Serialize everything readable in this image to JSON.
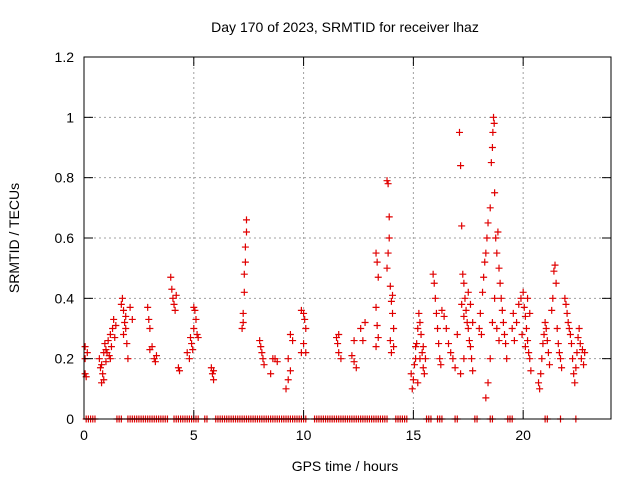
{
  "chart_data": {
    "type": "scatter",
    "title": "Day 170 of 2023, SRMTID for receiver lhaz",
    "xlabel": "GPS time / hours",
    "ylabel": "SRMTID / TECUs",
    "xlim": [
      0,
      24
    ],
    "ylim": [
      0,
      1.2
    ],
    "x_ticks": [
      0,
      5,
      10,
      15,
      20
    ],
    "x_tick_labels": [
      "0",
      "5",
      "10",
      "15",
      "20"
    ],
    "y_ticks": [
      0,
      0.2,
      0.4,
      0.6,
      0.8,
      1.0,
      1.2
    ],
    "y_tick_labels": [
      "0",
      "0.2",
      "0.4",
      "0.6",
      "0.8",
      "1",
      "1.2"
    ],
    "grid": true,
    "marker": "plus",
    "series": [
      {
        "name": "SRMTID",
        "color": "#e00000",
        "points": [
          [
            0.05,
            0.24
          ],
          [
            0.05,
            0.2
          ],
          [
            0.05,
            0.15
          ],
          [
            0.1,
            0.14
          ],
          [
            0.15,
            0.22
          ],
          [
            0.7,
            0.2
          ],
          [
            0.75,
            0.17
          ],
          [
            0.8,
            0.12
          ],
          [
            0.85,
            0.15
          ],
          [
            0.9,
            0.22
          ],
          [
            0.95,
            0.25
          ],
          [
            1.0,
            0.19
          ],
          [
            1.05,
            0.22
          ],
          [
            1.1,
            0.26
          ],
          [
            1.15,
            0.21
          ],
          [
            1.2,
            0.28
          ],
          [
            1.25,
            0.24
          ],
          [
            1.3,
            0.3
          ],
          [
            1.35,
            0.33
          ],
          [
            1.4,
            0.27
          ],
          [
            1.45,
            0.31
          ],
          [
            0.8,
            0.18
          ],
          [
            0.9,
            0.13
          ],
          [
            1.0,
            0.23
          ],
          [
            1.2,
            0.2
          ],
          [
            1.7,
            0.38
          ],
          [
            1.75,
            0.4
          ],
          [
            1.8,
            0.36
          ],
          [
            1.85,
            0.32
          ],
          [
            1.9,
            0.3
          ],
          [
            1.95,
            0.25
          ],
          [
            2.0,
            0.2
          ],
          [
            1.9,
            0.34
          ],
          [
            1.8,
            0.28
          ],
          [
            2.1,
            0.37
          ],
          [
            2.2,
            0.33
          ],
          [
            2.9,
            0.37
          ],
          [
            2.95,
            0.33
          ],
          [
            3.0,
            0.3
          ],
          [
            3.1,
            0.24
          ],
          [
            3.2,
            0.2
          ],
          [
            3.25,
            0.19
          ],
          [
            3.3,
            0.21
          ],
          [
            3.0,
            0.23
          ],
          [
            3.95,
            0.47
          ],
          [
            4.0,
            0.43
          ],
          [
            4.05,
            0.4
          ],
          [
            4.1,
            0.38
          ],
          [
            4.15,
            0.36
          ],
          [
            4.2,
            0.41
          ],
          [
            4.3,
            0.17
          ],
          [
            4.35,
            0.16
          ],
          [
            4.7,
            0.22
          ],
          [
            4.8,
            0.2
          ],
          [
            4.9,
            0.25
          ],
          [
            5.0,
            0.3
          ],
          [
            5.05,
            0.36
          ],
          [
            5.1,
            0.33
          ],
          [
            5.15,
            0.28
          ],
          [
            5.2,
            0.27
          ],
          [
            4.85,
            0.27
          ],
          [
            4.95,
            0.23
          ],
          [
            5.0,
            0.37
          ],
          [
            5.8,
            0.17
          ],
          [
            5.85,
            0.15
          ],
          [
            5.9,
            0.13
          ],
          [
            5.9,
            0.16
          ],
          [
            7.2,
            0.3
          ],
          [
            7.25,
            0.35
          ],
          [
            7.3,
            0.42
          ],
          [
            7.3,
            0.48
          ],
          [
            7.35,
            0.52
          ],
          [
            7.35,
            0.57
          ],
          [
            7.4,
            0.62
          ],
          [
            7.4,
            0.66
          ],
          [
            7.25,
            0.32
          ],
          [
            8.0,
            0.26
          ],
          [
            8.05,
            0.24
          ],
          [
            8.1,
            0.22
          ],
          [
            8.15,
            0.2
          ],
          [
            8.2,
            0.18
          ],
          [
            8.5,
            0.15
          ],
          [
            8.6,
            0.2
          ],
          [
            8.7,
            0.2
          ],
          [
            8.8,
            0.19
          ],
          [
            9.2,
            0.1
          ],
          [
            9.3,
            0.13
          ],
          [
            9.4,
            0.28
          ],
          [
            9.5,
            0.26
          ],
          [
            9.3,
            0.2
          ],
          [
            9.4,
            0.16
          ],
          [
            9.9,
            0.36
          ],
          [
            10.0,
            0.35
          ],
          [
            10.05,
            0.33
          ],
          [
            10.1,
            0.3
          ],
          [
            10.0,
            0.25
          ],
          [
            10.1,
            0.22
          ],
          [
            9.9,
            0.22
          ],
          [
            11.5,
            0.27
          ],
          [
            11.55,
            0.25
          ],
          [
            11.6,
            0.22
          ],
          [
            11.7,
            0.2
          ],
          [
            11.6,
            0.28
          ],
          [
            12.2,
            0.21
          ],
          [
            12.3,
            0.19
          ],
          [
            12.4,
            0.17
          ],
          [
            12.3,
            0.26
          ],
          [
            12.6,
            0.3
          ],
          [
            12.7,
            0.26
          ],
          [
            12.8,
            0.32
          ],
          [
            13.3,
            0.55
          ],
          [
            13.35,
            0.52
          ],
          [
            13.4,
            0.47
          ],
          [
            13.3,
            0.37
          ],
          [
            13.35,
            0.31
          ],
          [
            13.4,
            0.27
          ],
          [
            13.3,
            0.24
          ],
          [
            13.8,
            0.79
          ],
          [
            13.85,
            0.78
          ],
          [
            13.9,
            0.67
          ],
          [
            13.9,
            0.6
          ],
          [
            13.85,
            0.55
          ],
          [
            13.8,
            0.5
          ],
          [
            13.95,
            0.44
          ],
          [
            14.0,
            0.39
          ],
          [
            14.05,
            0.35
          ],
          [
            14.1,
            0.3
          ],
          [
            13.95,
            0.26
          ],
          [
            14.0,
            0.22
          ],
          [
            14.1,
            0.24
          ],
          [
            14.05,
            0.41
          ],
          [
            14.9,
            0.15
          ],
          [
            14.95,
            0.1
          ],
          [
            15.0,
            0.13
          ],
          [
            15.05,
            0.18
          ],
          [
            15.1,
            0.2
          ],
          [
            15.15,
            0.25
          ],
          [
            15.2,
            0.3
          ],
          [
            15.25,
            0.35
          ],
          [
            15.3,
            0.32
          ],
          [
            15.35,
            0.28
          ],
          [
            15.4,
            0.22
          ],
          [
            15.45,
            0.17
          ],
          [
            15.5,
            0.15
          ],
          [
            15.55,
            0.2
          ],
          [
            15.1,
            0.24
          ],
          [
            15.2,
            0.12
          ],
          [
            15.3,
            0.2
          ],
          [
            15.45,
            0.24
          ],
          [
            15.9,
            0.48
          ],
          [
            15.95,
            0.45
          ],
          [
            16.0,
            0.4
          ],
          [
            16.05,
            0.35
          ],
          [
            16.1,
            0.3
          ],
          [
            16.15,
            0.25
          ],
          [
            16.2,
            0.2
          ],
          [
            16.25,
            0.18
          ],
          [
            16.3,
            0.36
          ],
          [
            16.4,
            0.34
          ],
          [
            16.5,
            0.3
          ],
          [
            16.6,
            0.25
          ],
          [
            16.7,
            0.22
          ],
          [
            16.8,
            0.2
          ],
          [
            16.9,
            0.17
          ],
          [
            17.0,
            0.28
          ],
          [
            17.1,
            0.95
          ],
          [
            17.15,
            0.84
          ],
          [
            17.2,
            0.64
          ],
          [
            17.25,
            0.48
          ],
          [
            17.3,
            0.45
          ],
          [
            17.35,
            0.4
          ],
          [
            17.4,
            0.36
          ],
          [
            17.45,
            0.32
          ],
          [
            17.5,
            0.3
          ],
          [
            17.55,
            0.26
          ],
          [
            17.6,
            0.24
          ],
          [
            17.65,
            0.2
          ],
          [
            17.7,
            0.16
          ],
          [
            17.2,
            0.38
          ],
          [
            17.3,
            0.34
          ],
          [
            17.5,
            0.42
          ],
          [
            17.6,
            0.38
          ],
          [
            17.7,
            0.32
          ],
          [
            17.15,
            0.15
          ],
          [
            17.3,
            0.2
          ],
          [
            18.0,
            0.3
          ],
          [
            18.05,
            0.35
          ],
          [
            18.1,
            0.28
          ],
          [
            18.15,
            0.42
          ],
          [
            18.2,
            0.47
          ],
          [
            18.25,
            0.52
          ],
          [
            18.3,
            0.55
          ],
          [
            18.35,
            0.6
          ],
          [
            18.4,
            0.65
          ],
          [
            18.5,
            0.7
          ],
          [
            18.55,
            0.85
          ],
          [
            18.6,
            0.9
          ],
          [
            18.62,
            0.95
          ],
          [
            18.65,
            1.0
          ],
          [
            18.68,
            0.98
          ],
          [
            18.7,
            0.75
          ],
          [
            18.75,
            0.6
          ],
          [
            18.8,
            0.55
          ],
          [
            18.85,
            0.62
          ],
          [
            18.9,
            0.5
          ],
          [
            18.95,
            0.45
          ],
          [
            19.0,
            0.4
          ],
          [
            19.05,
            0.36
          ],
          [
            19.1,
            0.32
          ],
          [
            19.15,
            0.28
          ],
          [
            19.2,
            0.25
          ],
          [
            19.25,
            0.2
          ],
          [
            18.3,
            0.07
          ],
          [
            18.4,
            0.12
          ],
          [
            18.5,
            0.2
          ],
          [
            18.6,
            0.32
          ],
          [
            18.7,
            0.4
          ],
          [
            18.8,
            0.3
          ],
          [
            18.9,
            0.26
          ],
          [
            19.5,
            0.3
          ],
          [
            19.55,
            0.35
          ],
          [
            19.6,
            0.26
          ],
          [
            19.7,
            0.32
          ],
          [
            19.8,
            0.38
          ],
          [
            19.9,
            0.4
          ],
          [
            20.0,
            0.42
          ],
          [
            20.05,
            0.37
          ],
          [
            20.1,
            0.34
          ],
          [
            20.15,
            0.3
          ],
          [
            20.2,
            0.26
          ],
          [
            20.25,
            0.22
          ],
          [
            20.3,
            0.2
          ],
          [
            20.35,
            0.16
          ],
          [
            19.95,
            0.28
          ],
          [
            20.1,
            0.24
          ],
          [
            20.2,
            0.4
          ],
          [
            20.3,
            0.35
          ],
          [
            20.7,
            0.12
          ],
          [
            20.75,
            0.1
          ],
          [
            20.8,
            0.15
          ],
          [
            20.85,
            0.2
          ],
          [
            20.9,
            0.25
          ],
          [
            20.95,
            0.28
          ],
          [
            21.0,
            0.32
          ],
          [
            21.05,
            0.3
          ],
          [
            21.1,
            0.26
          ],
          [
            21.15,
            0.22
          ],
          [
            21.2,
            0.18
          ],
          [
            21.3,
            0.36
          ],
          [
            21.35,
            0.4
          ],
          [
            21.4,
            0.49
          ],
          [
            21.45,
            0.51
          ],
          [
            21.5,
            0.45
          ],
          [
            21.55,
            0.3
          ],
          [
            21.6,
            0.25
          ],
          [
            21.65,
            0.22
          ],
          [
            21.7,
            0.2
          ],
          [
            21.75,
            0.17
          ],
          [
            21.9,
            0.4
          ],
          [
            21.95,
            0.38
          ],
          [
            22.0,
            0.35
          ],
          [
            22.05,
            0.32
          ],
          [
            22.1,
            0.3
          ],
          [
            22.15,
            0.28
          ],
          [
            22.2,
            0.25
          ],
          [
            22.25,
            0.2
          ],
          [
            22.3,
            0.15
          ],
          [
            22.35,
            0.12
          ],
          [
            22.4,
            0.17
          ],
          [
            22.45,
            0.22
          ],
          [
            22.5,
            0.27
          ],
          [
            22.55,
            0.3
          ],
          [
            22.6,
            0.25
          ],
          [
            22.65,
            0.2
          ],
          [
            22.7,
            0.23
          ],
          [
            22.75,
            0.18
          ],
          [
            22.8,
            0.22
          ]
        ],
        "zero_points_x": [
          0.1,
          0.2,
          0.3,
          0.4,
          0.5,
          1.5,
          1.6,
          1.7,
          2.0,
          2.1,
          2.2,
          2.3,
          2.4,
          2.5,
          2.6,
          2.7,
          2.8,
          2.9,
          3.0,
          3.1,
          3.2,
          3.3,
          3.4,
          3.5,
          3.6,
          3.7,
          3.8,
          4.1,
          4.2,
          4.3,
          4.4,
          4.5,
          4.6,
          4.7,
          4.8,
          4.9,
          5.0,
          5.1,
          5.2,
          5.5,
          5.6,
          6.0,
          6.1,
          6.2,
          6.3,
          6.4,
          6.5,
          6.6,
          6.7,
          6.8,
          6.9,
          7.0,
          7.1,
          7.2,
          7.3,
          7.4,
          7.5,
          7.6,
          7.7,
          7.8,
          7.9,
          8.0,
          8.1,
          8.2,
          8.3,
          8.4,
          8.5,
          8.6,
          8.7,
          8.8,
          8.9,
          9.0,
          9.1,
          9.2,
          9.3,
          9.4,
          9.5,
          9.6,
          9.7,
          9.8,
          9.9,
          10.0,
          10.1,
          10.5,
          10.6,
          10.7,
          10.8,
          10.9,
          11.0,
          11.1,
          11.2,
          11.3,
          11.4,
          11.5,
          11.6,
          11.7,
          11.8,
          11.9,
          12.0,
          12.1,
          12.2,
          12.3,
          12.4,
          12.5,
          12.6,
          12.7,
          12.8,
          12.9,
          13.0,
          13.1,
          13.2,
          13.3,
          13.4,
          13.5,
          13.6,
          13.7,
          13.8,
          14.2,
          14.3,
          14.4,
          14.5,
          14.6,
          14.7,
          15.6,
          15.7,
          15.8,
          16.1,
          16.2,
          16.3,
          16.9,
          17.0,
          17.8,
          17.9,
          18.5,
          18.6,
          19.3,
          19.4,
          19.5,
          21.0,
          21.1,
          21.7,
          22.4
        ]
      }
    ]
  }
}
